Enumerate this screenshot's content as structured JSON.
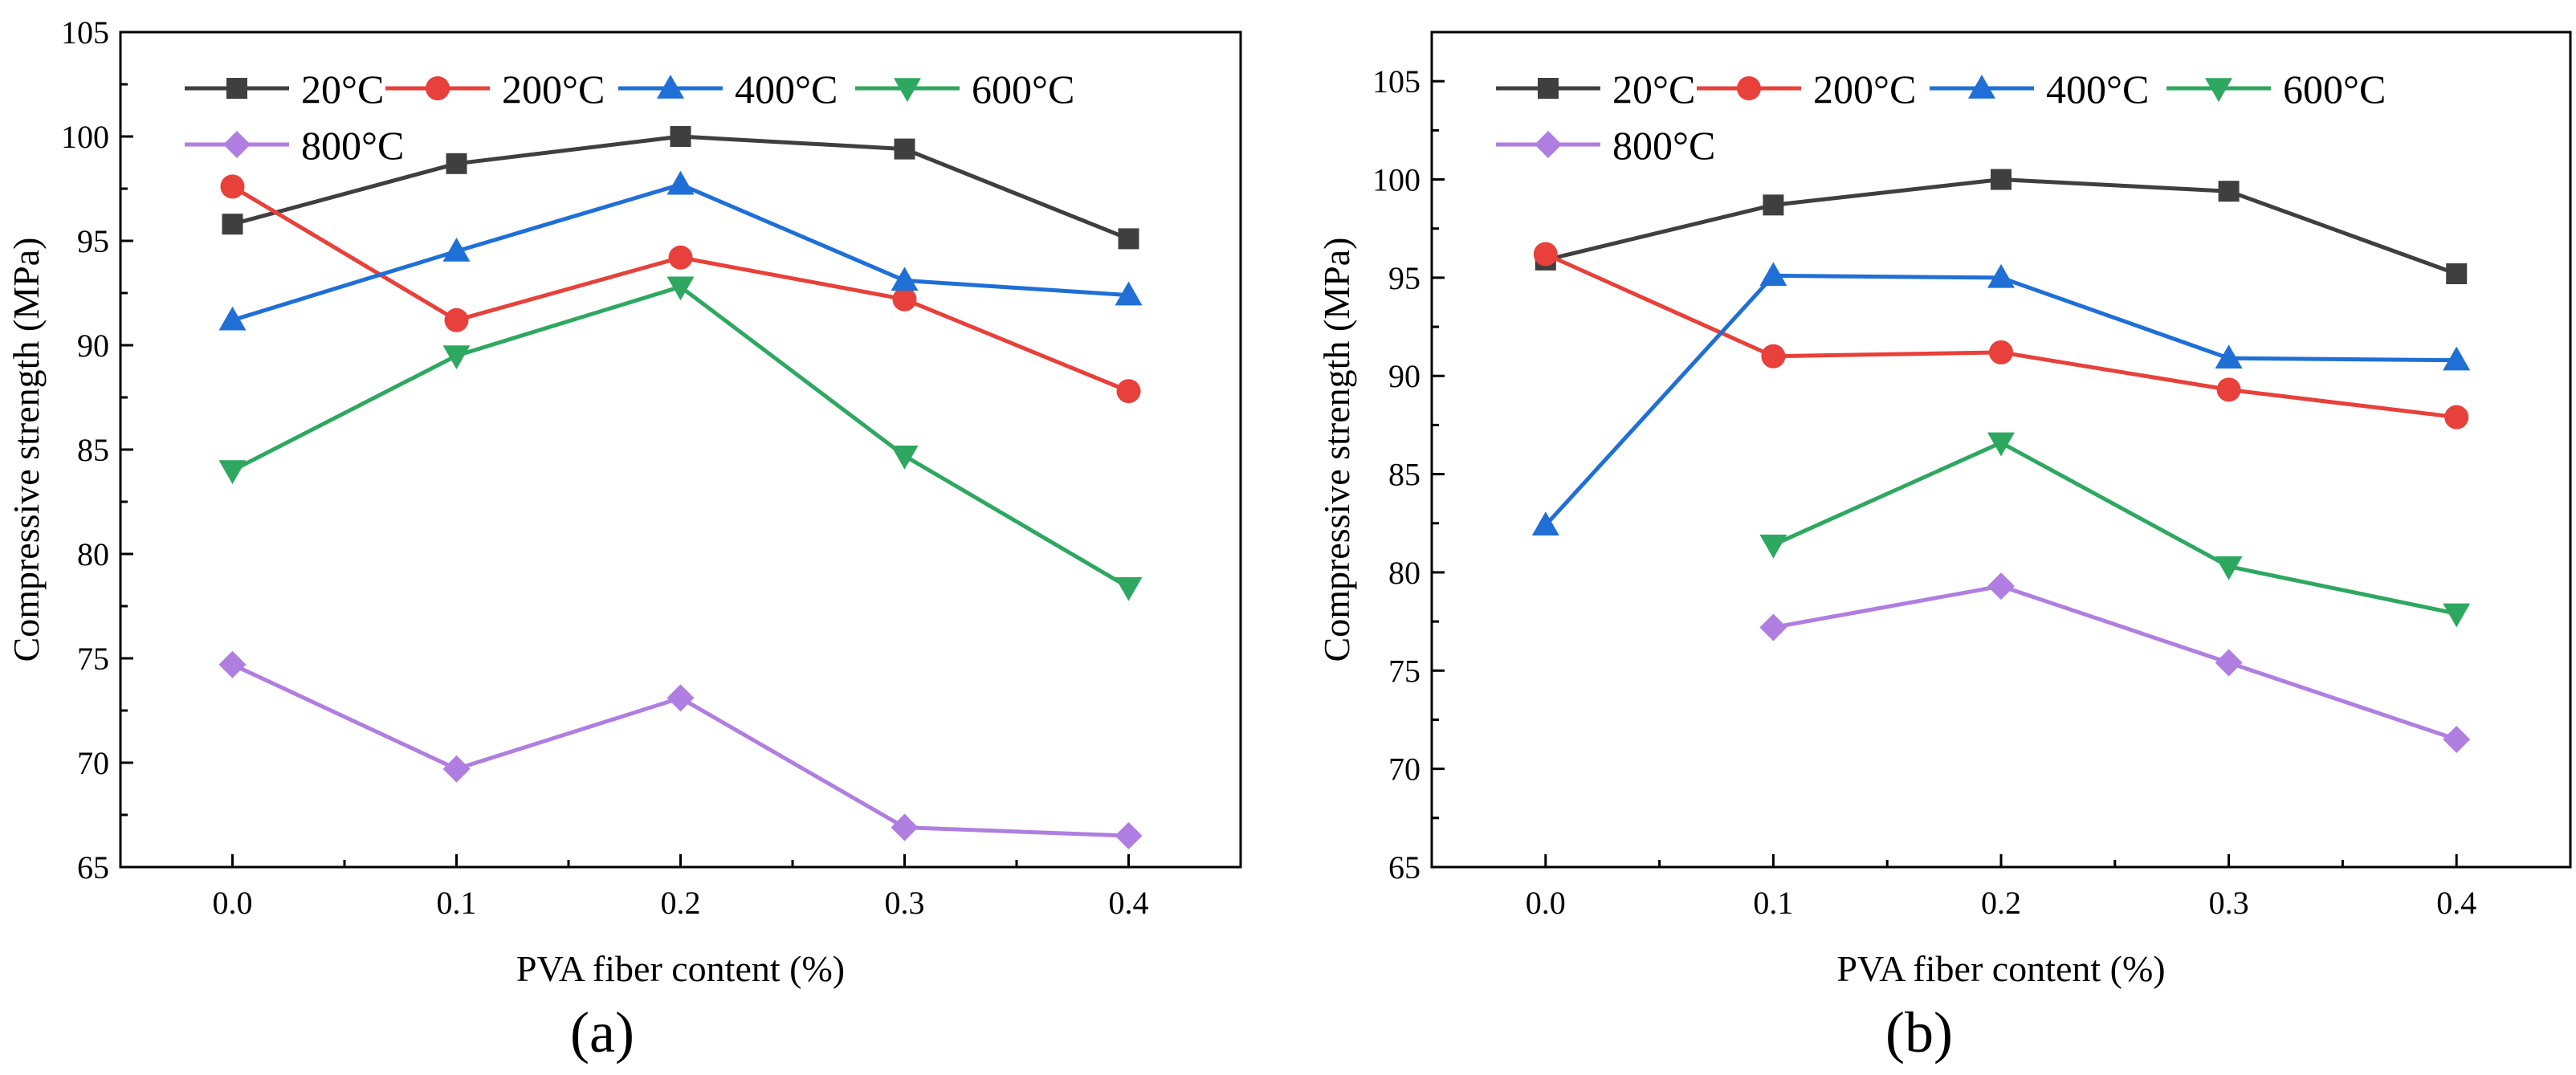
{
  "figure": {
    "panels": [
      "(a)",
      "(b)"
    ]
  },
  "chart_data": [
    {
      "type": "line",
      "panel_label": "(a)",
      "title": "",
      "xlabel": "PVA fiber content (%)",
      "ylabel": "Compressive strength (MPa)",
      "x": [
        0.0,
        0.1,
        0.2,
        0.3,
        0.4
      ],
      "x_tick_labels": [
        "0.0",
        "0.1",
        "0.2",
        "0.3",
        "0.4"
      ],
      "xlim": [
        -0.05,
        0.45
      ],
      "ylim": [
        65,
        105
      ],
      "y_ticks": [
        65,
        70,
        75,
        80,
        85,
        90,
        95,
        100,
        105
      ],
      "y_tick_labels": [
        "65",
        "70",
        "75",
        "80",
        "85",
        "90",
        "95",
        "100",
        "105"
      ],
      "legend_position": "top-left",
      "grid": false,
      "series": [
        {
          "name": "20°C",
          "color": "#3f3f3f",
          "marker": "square",
          "values": [
            95.8,
            98.7,
            100.0,
            99.4,
            95.1
          ]
        },
        {
          "name": "200°C",
          "color": "#e8403a",
          "marker": "circle",
          "values": [
            97.6,
            91.2,
            94.2,
            92.2,
            87.8
          ]
        },
        {
          "name": "400°C",
          "color": "#1f6fd6",
          "marker": "triangle",
          "values": [
            91.2,
            94.5,
            97.7,
            93.1,
            92.4
          ]
        },
        {
          "name": "600°C",
          "color": "#2ea860",
          "marker": "triangle-down",
          "values": [
            84.0,
            89.5,
            92.8,
            84.7,
            78.4
          ]
        },
        {
          "name": "800°C",
          "color": "#b07ee0",
          "marker": "diamond",
          "values": [
            74.7,
            69.7,
            73.1,
            66.9,
            66.5
          ]
        }
      ]
    },
    {
      "type": "line",
      "panel_label": "(b)",
      "title": "",
      "xlabel": "PVA fiber content (%)",
      "ylabel": "Compressive strength (MPa)",
      "x": [
        0.0,
        0.1,
        0.2,
        0.3,
        0.4
      ],
      "x_tick_labels": [
        "0.0",
        "0.1",
        "0.2",
        "0.3",
        "0.4"
      ],
      "xlim": [
        -0.05,
        0.45
      ],
      "ylim": [
        65,
        107.5
      ],
      "y_ticks": [
        65,
        70,
        75,
        80,
        85,
        90,
        95,
        100,
        105
      ],
      "y_tick_labels": [
        "65",
        "70",
        "75",
        "80",
        "85",
        "90",
        "95",
        "100",
        "105"
      ],
      "legend_position": "top-left",
      "grid": false,
      "series": [
        {
          "name": "20°C",
          "color": "#3f3f3f",
          "marker": "square",
          "values": [
            95.9,
            98.7,
            100.0,
            99.4,
            95.2
          ]
        },
        {
          "name": "200°C",
          "color": "#e8403a",
          "marker": "circle",
          "values": [
            96.2,
            91.0,
            91.2,
            89.3,
            87.9
          ]
        },
        {
          "name": "400°C",
          "color": "#1f6fd6",
          "marker": "triangle",
          "values": [
            82.4,
            95.1,
            95.0,
            90.9,
            90.8
          ]
        },
        {
          "name": "600°C",
          "color": "#2ea860",
          "marker": "triangle-down",
          "values": [
            null,
            81.4,
            86.6,
            80.3,
            77.9
          ]
        },
        {
          "name": "800°C",
          "color": "#b07ee0",
          "marker": "diamond",
          "values": [
            null,
            77.2,
            79.3,
            75.4,
            71.5
          ]
        }
      ]
    }
  ]
}
